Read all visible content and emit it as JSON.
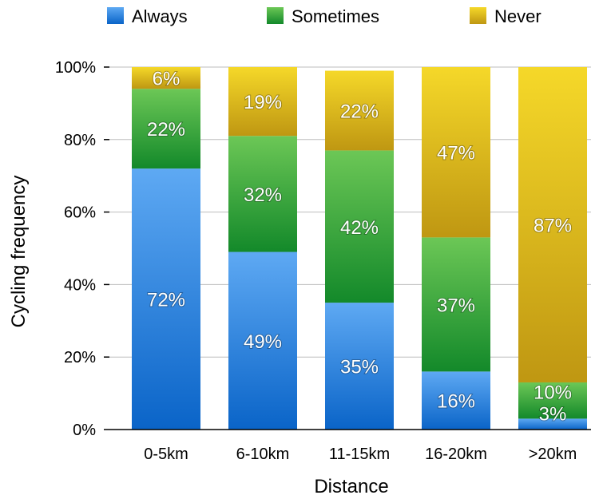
{
  "chart_data": {
    "type": "bar",
    "stacked": true,
    "categories": [
      "0-5km",
      "6-10km",
      "11-15km",
      "16-20km",
      ">20km"
    ],
    "series": [
      {
        "name": "Always",
        "values": [
          72,
          49,
          35,
          16,
          3
        ],
        "labels": [
          "72%",
          "49%",
          "35%",
          "16%",
          "3%"
        ],
        "color_light": "#5ea9f3",
        "color_dark": "#0a64c8"
      },
      {
        "name": "Sometimes",
        "values": [
          22,
          32,
          42,
          37,
          10
        ],
        "labels": [
          "22%",
          "32%",
          "42%",
          "37%",
          "10%"
        ],
        "color_light": "#6cc756",
        "color_dark": "#13892a"
      },
      {
        "name": "Never",
        "values": [
          6,
          19,
          22,
          47,
          87
        ],
        "labels": [
          "6%",
          "19%",
          "22%",
          "47%",
          "87%"
        ],
        "color_light": "#f5d829",
        "color_dark": "#bf9712"
      }
    ],
    "xlabel": "Distance",
    "ylabel": "Cycling frequency",
    "ylim": [
      0,
      100
    ],
    "yticks": [
      "0%",
      "20%",
      "40%",
      "60%",
      "80%",
      "100%"
    ],
    "grid": true,
    "legend_position": "top"
  }
}
